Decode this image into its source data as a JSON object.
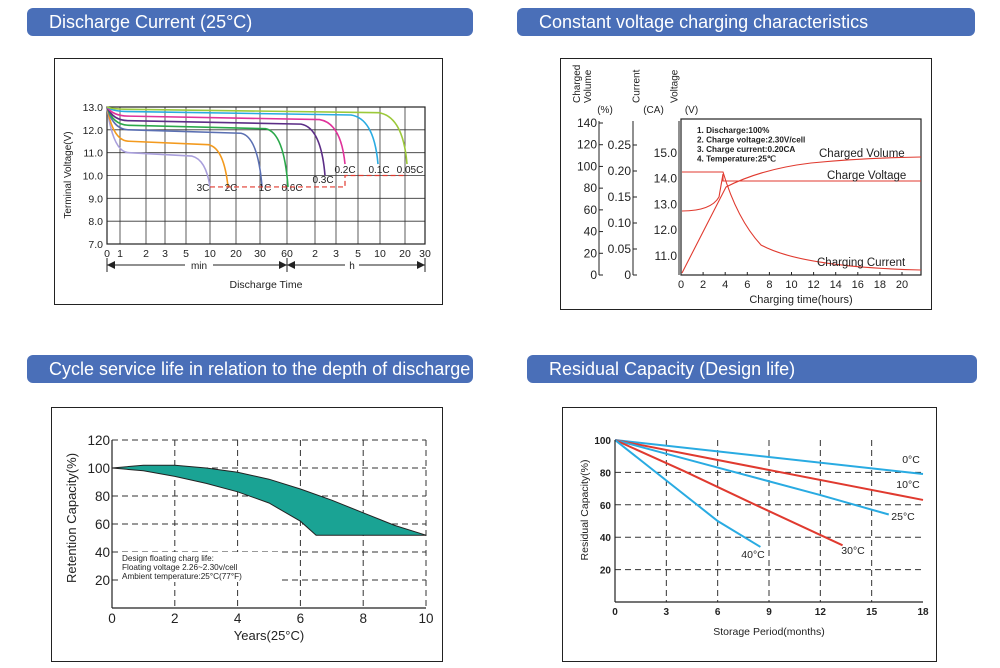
{
  "headers": {
    "discharge": "Discharge Current (25°C)",
    "charging": "Constant voltage charging characteristics",
    "cycle": "Cycle service life in relation to the depth of discharge",
    "residual": "Residual Capacity (Design life)"
  },
  "colors": {
    "header_bg": "#4a6fb8",
    "teal": "#1aa394",
    "red": "#e03a2f",
    "cyan": "#29abe2"
  },
  "chart_data": [
    {
      "type": "line",
      "title": "Discharge Current (25°C)",
      "ylabel": "Terminal Voltage(V)",
      "xlabel": "Discharge Time",
      "ylim": [
        7.0,
        13.0
      ],
      "y_ticks": [
        "13.0",
        "12.0",
        "11.0",
        "10.0",
        "9.0",
        "8.0",
        "7.0"
      ],
      "x_ticks": [
        "0",
        "1",
        "2",
        "3",
        "5",
        "10",
        "20",
        "30",
        "60",
        "2",
        "3",
        "5",
        "10",
        "20",
        "30"
      ],
      "x_unit_min": "min",
      "x_unit_h": "h",
      "series": [
        {
          "name": "3C",
          "color": "#a99fdc",
          "end_label": "3C"
        },
        {
          "name": "2C",
          "color": "#f39a1e",
          "end_label": "2C"
        },
        {
          "name": "1C",
          "color": "#5a6fb2",
          "end_label": "1C"
        },
        {
          "name": "0.6C",
          "color": "#2aa84a",
          "end_label": "0.6C"
        },
        {
          "name": "0.3C",
          "color": "#5b2d86",
          "end_label": "0.3C"
        },
        {
          "name": "0.2C",
          "color": "#e0329a",
          "end_label": "0.2C"
        },
        {
          "name": "0.1C",
          "color": "#29abe2",
          "end_label": "0.1C"
        },
        {
          "name": "0.05C",
          "color": "#9cc93a",
          "end_label": "0.05C"
        }
      ]
    },
    {
      "type": "line",
      "title": "Constant voltage charging characteristics",
      "xlabel": "Charging time(hours)",
      "x_ticks": [
        "0",
        "2",
        "4",
        "6",
        "8",
        "10",
        "12",
        "14",
        "16",
        "18",
        "20"
      ],
      "axis_volume_label": [
        "Charged",
        "Volume",
        "(%)"
      ],
      "axis_current_label": [
        "Current",
        "(CA)"
      ],
      "axis_voltage_label": [
        "Voltage",
        "(V)"
      ],
      "volume_ticks": [
        "140",
        "120",
        "100",
        "80",
        "60",
        "40",
        "20",
        "0"
      ],
      "current_ticks": [
        "0.25",
        "0.20",
        "0.15",
        "0.10",
        "0.05",
        "0"
      ],
      "voltage_ticks": [
        "15.0",
        "14.0",
        "13.0",
        "12.0",
        "11.0"
      ],
      "notes": [
        "1. Discharge:100%",
        "2. Charge voltage:2.30V/cell",
        "3. Charge current:0.20CA",
        "4. Temperature:25℃"
      ],
      "series": [
        {
          "name": "Charged Volume",
          "label": "Charged Volume"
        },
        {
          "name": "Charge Voltage",
          "label": "Charge Voltage"
        },
        {
          "name": "Charging Current",
          "label": "Charging Current"
        }
      ]
    },
    {
      "type": "area",
      "title": "Cycle service life in relation to the depth of discharge",
      "xlabel": "Years(25°C)",
      "ylabel": "Retention Capacity(%)",
      "xlim": [
        0,
        10
      ],
      "ylim": [
        0,
        120
      ],
      "x_ticks": [
        "0",
        "2",
        "4",
        "6",
        "8",
        "10"
      ],
      "y_ticks": [
        "120",
        "100",
        "80",
        "60",
        "40",
        "20"
      ],
      "upper": {
        "x": [
          0,
          1,
          2,
          3,
          4,
          5,
          6,
          7,
          8,
          9,
          10
        ],
        "y": [
          100,
          102,
          102,
          100,
          97,
          92,
          85,
          77,
          68,
          59,
          52
        ]
      },
      "lower": {
        "x": [
          0,
          1,
          2,
          3,
          4,
          5,
          6,
          6.5,
          7,
          8,
          9,
          10
        ],
        "y": [
          100,
          98,
          94,
          89,
          83,
          75,
          62,
          52,
          52,
          52,
          52,
          52
        ]
      },
      "notes": [
        "Design floating charg life:",
        "Floating voltage 2.26~2.30v/cell",
        "Ambient temperature:25°C(77°F)"
      ]
    },
    {
      "type": "line",
      "title": "Residual Capacity (Design life)",
      "xlabel": "Storage Period(months)",
      "ylabel": "Residual Capacity(%)",
      "xlim": [
        0,
        18
      ],
      "ylim": [
        0,
        100
      ],
      "x_ticks": [
        "0",
        "3",
        "6",
        "9",
        "12",
        "15",
        "18"
      ],
      "y_ticks": [
        "100",
        "80",
        "60",
        "40",
        "20"
      ],
      "series": [
        {
          "name": "0°C",
          "label": "0°C",
          "color": "#29abe2",
          "x": [
            0,
            18
          ],
          "y": [
            100,
            79
          ]
        },
        {
          "name": "10°C",
          "label": "10°C",
          "color": "#e03a2f",
          "x": [
            0,
            18
          ],
          "y": [
            100,
            63
          ]
        },
        {
          "name": "25°C",
          "label": "25°C",
          "color": "#29abe2",
          "x": [
            0,
            6,
            12,
            16
          ],
          "y": [
            100,
            83,
            66,
            54
          ]
        },
        {
          "name": "30°C",
          "label": "30°C",
          "color": "#e03a2f",
          "x": [
            0,
            4,
            8,
            13.3
          ],
          "y": [
            100,
            81,
            61,
            35
          ]
        },
        {
          "name": "40°C",
          "label": "40°C",
          "color": "#29abe2",
          "x": [
            0,
            3,
            6,
            8.5
          ],
          "y": [
            100,
            75,
            50,
            34
          ]
        }
      ]
    }
  ]
}
